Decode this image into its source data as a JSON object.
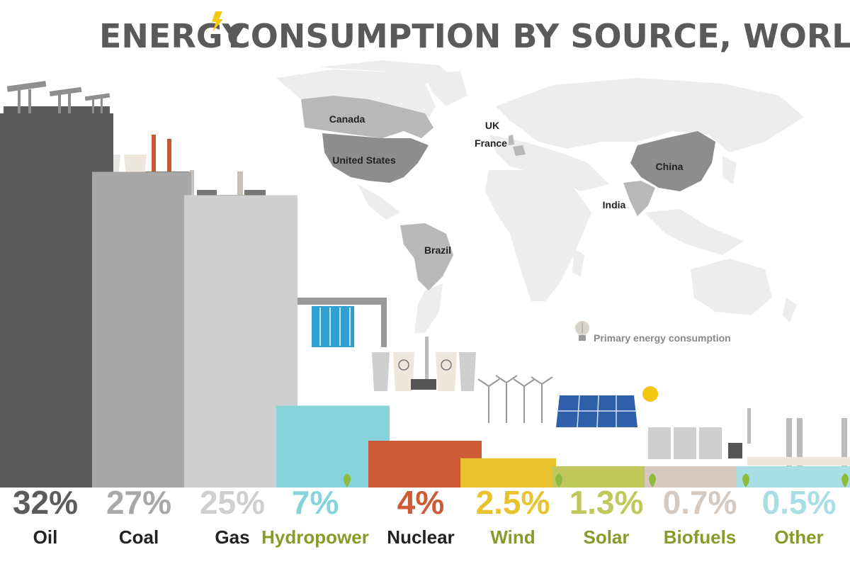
{
  "title_part1": "ENERGY",
  "title_part2": "CONSUMPTION BY SOURCE, WORLD",
  "legend_label": "Primary energy consumption",
  "countries": [
    "Canada",
    "United States",
    "UK",
    "France",
    "China",
    "India",
    "Brazil"
  ],
  "chart_data": {
    "type": "bar",
    "title": "ENERGY CONSUMPTION BY SOURCE, WORLD",
    "categories": [
      "Oil",
      "Coal",
      "Gas",
      "Hydropower",
      "Nuclear",
      "Wind",
      "Solar",
      "Biofuels",
      "Other"
    ],
    "values": [
      32,
      27,
      25,
      7,
      4,
      2.5,
      1.3,
      0.7,
      0.5
    ],
    "value_labels": [
      "32%",
      "27%",
      "25%",
      "7%",
      "4%",
      "2.5%",
      "1.3%",
      "0.7%",
      "0.5%"
    ],
    "renewable": [
      false,
      false,
      false,
      true,
      false,
      true,
      true,
      true,
      true
    ],
    "unit": "%",
    "legend": "Primary energy consumption",
    "legend_position": "center-right",
    "grid": false
  },
  "colors": {
    "bars": [
      "#5b5b5b",
      "#a8a8a8",
      "#cfcfcf",
      "#86d3dc",
      "#cd5b36",
      "#e8c32e",
      "#bfc85a",
      "#d6c9c0",
      "#a9dfe4"
    ],
    "category_text": [
      "#222222",
      "#222222",
      "#222222",
      "#8a9a2a",
      "#222222",
      "#8a9a2a",
      "#8a9a2a",
      "#8a9a2a",
      "#8a9a2a"
    ],
    "title": "#5a5a5a",
    "bolt": "#f2c811",
    "map_light": "#ededed",
    "map_dark": "#8d8d8d",
    "map_medium": "#b8b8b8",
    "leaf": "#8dbb3c"
  }
}
